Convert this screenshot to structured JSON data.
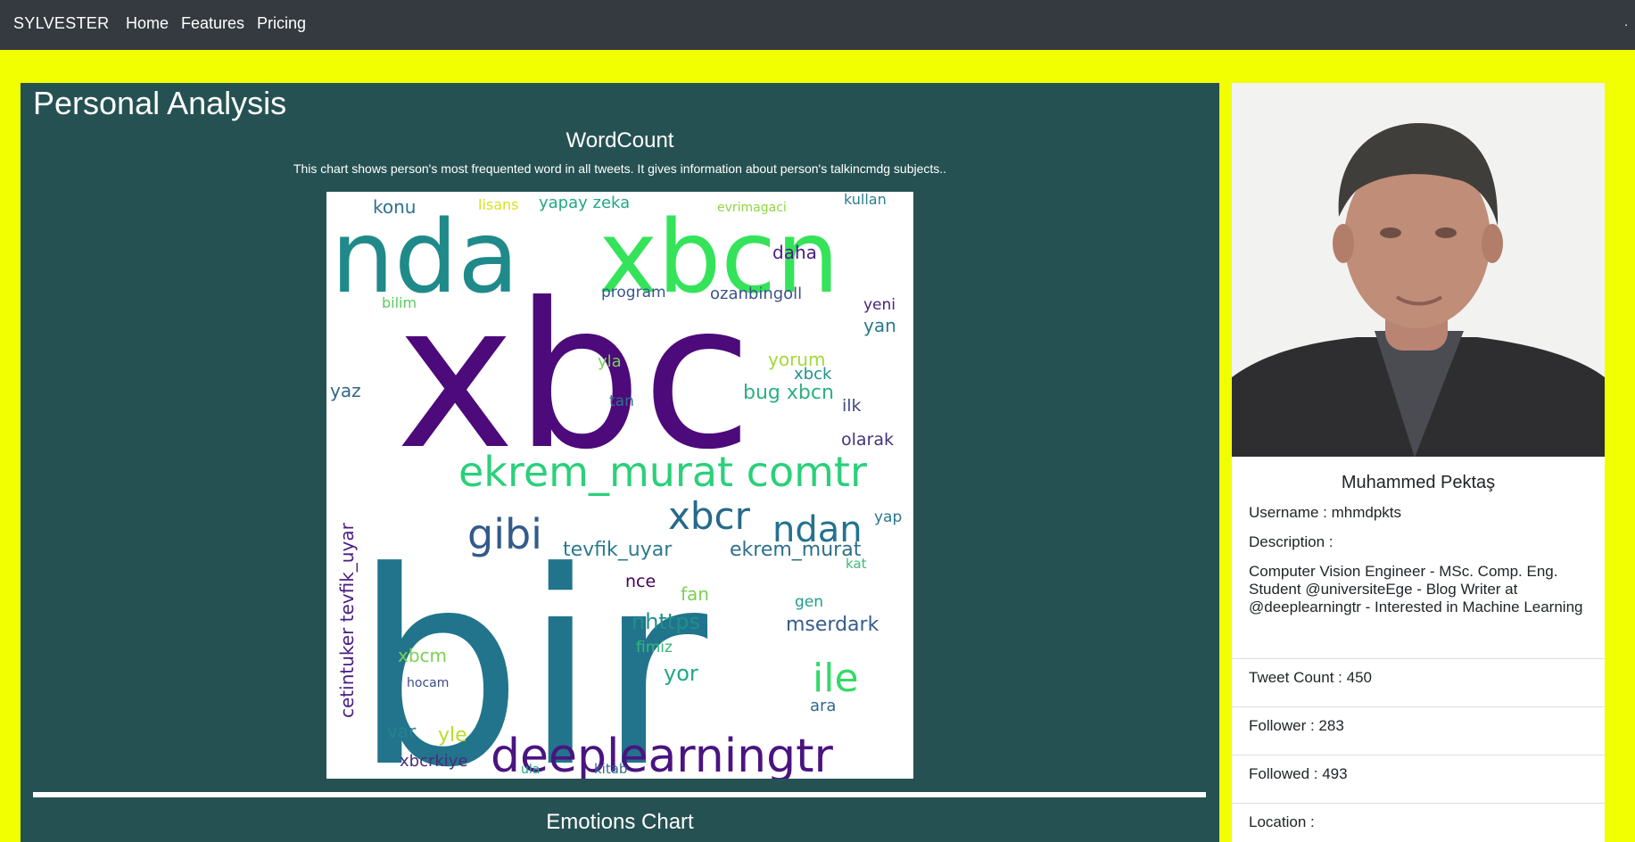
{
  "navbar": {
    "brand": "SYLVESTER",
    "items": [
      "Home",
      "Features",
      "Pricing"
    ],
    "corner": "."
  },
  "analysis": {
    "title": "Personal Analysis",
    "wordcount": {
      "title": "WordCount",
      "description": "This chart shows person's most frequented word in all tweets. It gives information about person's talkincmdg subjects..",
      "words": [
        {
          "t": "bir",
          "c": "#21748b"
        },
        {
          "t": "xbc",
          "c": "#4c0a7a"
        },
        {
          "t": "nda",
          "c": "#208a8a"
        },
        {
          "t": "xbcn",
          "c": "#35e35a"
        },
        {
          "t": "ekrem_murat comtr",
          "c": "#2bd07a"
        },
        {
          "t": "deeplearningtr",
          "c": "#4a1480"
        },
        {
          "t": "xbcr",
          "c": "#26698b"
        },
        {
          "t": "ndan",
          "c": "#23728e"
        },
        {
          "t": "gibi",
          "c": "#325b8b"
        },
        {
          "t": "ile",
          "c": "#35d96a"
        },
        {
          "t": "tevfik_uyar",
          "c": "#2a7b8e"
        },
        {
          "t": "ekrem_murat",
          "c": "#2d6f8e"
        },
        {
          "t": "cetintuker tevfik_uyar",
          "c": "#4a1c80"
        },
        {
          "t": "mserdark",
          "c": "#355b8d"
        },
        {
          "t": "nhttps",
          "c": "#218f8d"
        },
        {
          "t": "bug xbcn",
          "c": "#2bb07f"
        },
        {
          "t": "yorum",
          "c": "#a2d93b"
        },
        {
          "t": "ozanbingoll",
          "c": "#3b528b"
        },
        {
          "t": "daha",
          "c": "#4a1c80"
        },
        {
          "t": "program",
          "c": "#38568c"
        },
        {
          "t": "konu",
          "c": "#2c728e"
        },
        {
          "t": "yapay zeka",
          "c": "#22a884"
        },
        {
          "t": "lisans",
          "c": "#d6e31e"
        },
        {
          "t": "kullan",
          "c": "#2a7f8e"
        },
        {
          "t": "evrimagaci",
          "c": "#8fd744"
        },
        {
          "t": "xbcrkiye",
          "c": "#472d7b"
        },
        {
          "t": "bilim",
          "c": "#5ec962"
        },
        {
          "t": "yan",
          "c": "#2a788e"
        },
        {
          "t": "yeni",
          "c": "#482575"
        },
        {
          "t": "olarak",
          "c": "#46327e"
        },
        {
          "t": "yor",
          "c": "#22a884"
        },
        {
          "t": "fan",
          "c": "#7ad151"
        },
        {
          "t": "nce",
          "c": "#440154"
        },
        {
          "t": "ara",
          "c": "#31688e"
        },
        {
          "t": "yle",
          "c": "#b5de2b"
        },
        {
          "t": "var",
          "c": "#26828e"
        },
        {
          "t": "yaz",
          "c": "#31688e"
        },
        {
          "t": "xbcm",
          "c": "#7ad151"
        },
        {
          "t": "xbck",
          "c": "#21918c"
        },
        {
          "t": "ilk",
          "c": "#3e4a89"
        },
        {
          "t": "tan",
          "c": "#2c728e"
        },
        {
          "t": "yla",
          "c": "#7ad151"
        },
        {
          "t": "gen",
          "c": "#1f9e89"
        },
        {
          "t": "yap",
          "c": "#2a788e"
        },
        {
          "t": "kat",
          "c": "#3dbc74"
        },
        {
          "t": "fimiz",
          "c": "#35b779"
        },
        {
          "t": "hocam",
          "c": "#3e4a89"
        },
        {
          "t": "kitab",
          "c": "#31688e"
        },
        {
          "t": "ula",
          "c": "#20a386"
        }
      ]
    },
    "emotions_title": "Emotions Chart"
  },
  "profile": {
    "name": "Muhammed Pektaş",
    "username": "Username : mhmdpkts",
    "description_label": "Description :",
    "description": "Computer Vision Engineer - MSc. Comp. Eng. Student @universiteEge - Blog Writer at @deeplearningtr - Interested in Machine Learning",
    "tweet_count": "Tweet Count : 450",
    "follower": "Follower : 283",
    "followed": "Followed : 493",
    "location": "Location :"
  }
}
